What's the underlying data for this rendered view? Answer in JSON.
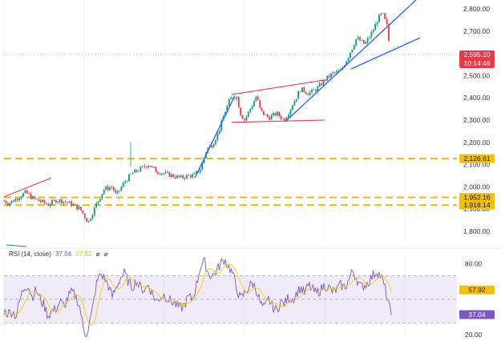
{
  "chart_data": [
    {
      "type": "candlestick",
      "name": "price",
      "y_ticks": [
        "1,800.00",
        "1,900.00",
        "2,000.00",
        "2,100.00",
        "2,200.00",
        "2,300.00",
        "2,400.00",
        "2,500.00",
        "2,600.00",
        "2,700.00",
        "2,800.00"
      ],
      "ylim": [
        1760,
        2840
      ],
      "current_price": {
        "value": 2595.2,
        "label": "2,595.20",
        "countdown": "10:14:46",
        "color": "#f23645"
      },
      "key_levels": [
        {
          "value": 2126.61,
          "label": "2,126.61"
        },
        {
          "value": 1952.16,
          "label": "1,952.16"
        },
        {
          "value": 1918.14,
          "label": "1,918.14"
        }
      ],
      "anchors": [
        [
          0,
          1950
        ],
        [
          10,
          1925
        ],
        [
          20,
          1945
        ],
        [
          32,
          1975
        ],
        [
          40,
          1950
        ],
        [
          50,
          1935
        ],
        [
          60,
          1920
        ],
        [
          70,
          1940
        ],
        [
          80,
          1935
        ],
        [
          90,
          1920
        ],
        [
          100,
          1900
        ],
        [
          110,
          1840
        ],
        [
          120,
          1920
        ],
        [
          130,
          1990
        ],
        [
          140,
          2000
        ],
        [
          145,
          1960
        ],
        [
          155,
          2020
        ],
        [
          165,
          2060
        ],
        [
          175,
          2080
        ],
        [
          185,
          2100
        ],
        [
          195,
          2070
        ],
        [
          205,
          2060
        ],
        [
          215,
          2050
        ],
        [
          225,
          2040
        ],
        [
          235,
          2050
        ],
        [
          242,
          2050
        ],
        [
          250,
          2080
        ],
        [
          258,
          2170
        ],
        [
          265,
          2190
        ],
        [
          272,
          2240
        ],
        [
          280,
          2330
        ],
        [
          287,
          2395
        ],
        [
          295,
          2410
        ],
        [
          300,
          2330
        ],
        [
          305,
          2300
        ],
        [
          315,
          2370
        ],
        [
          320,
          2410
        ],
        [
          325,
          2340
        ],
        [
          335,
          2310
        ],
        [
          345,
          2330
        ],
        [
          355,
          2300
        ],
        [
          365,
          2370
        ],
        [
          375,
          2440
        ],
        [
          385,
          2420
        ],
        [
          395,
          2440
        ],
        [
          405,
          2480
        ],
        [
          415,
          2510
        ],
        [
          425,
          2520
        ],
        [
          435,
          2590
        ],
        [
          445,
          2670
        ],
        [
          455,
          2640
        ],
        [
          465,
          2700
        ],
        [
          472,
          2760
        ],
        [
          477,
          2780
        ],
        [
          483,
          2720
        ],
        [
          487,
          2595
        ]
      ],
      "trend_lines": [
        {
          "color": "#f23645",
          "points": [
            [
              5,
              1955
            ],
            [
              64,
              2040
            ]
          ]
        },
        {
          "color": "#f23645",
          "points": [
            [
              289,
              2415
            ],
            [
              405,
              2480
            ]
          ]
        },
        {
          "color": "#f23645",
          "points": [
            [
              289,
              2290
            ],
            [
              405,
              2300
            ]
          ]
        },
        {
          "color": "#2962ff",
          "points": [
            [
              243,
              2040
            ],
            [
              293,
              2410
            ]
          ]
        },
        {
          "color": "#2962ff",
          "points": [
            [
              358,
              2300
            ],
            [
              519,
              2840
            ]
          ]
        },
        {
          "color": "#2962ff",
          "points": [
            [
              438,
              2530
            ],
            [
              524,
              2670
            ]
          ]
        }
      ]
    },
    {
      "type": "line",
      "name": "rsi",
      "legend": {
        "title": "RSI (14, close)",
        "rsi_value": "37.04",
        "ma_value": "57.92",
        "symbols": [
          "⌀",
          "⌀"
        ]
      },
      "y_ticks": [
        "20.00",
        "80.00"
      ],
      "ylim": [
        18,
        92
      ],
      "bands": {
        "upper": 70,
        "middle": 50,
        "lower": 30
      },
      "value_labels": [
        {
          "value": 57.92,
          "label": "57.92"
        },
        {
          "value": 37.04,
          "label": "37.04"
        }
      ],
      "anchors": [
        [
          5,
          40
        ],
        [
          10,
          38
        ],
        [
          15,
          40
        ],
        [
          20,
          36
        ],
        [
          26,
          52
        ],
        [
          30,
          60
        ],
        [
          35,
          62
        ],
        [
          40,
          52
        ],
        [
          45,
          58
        ],
        [
          50,
          50
        ],
        [
          55,
          45
        ],
        [
          60,
          36
        ],
        [
          65,
          40
        ],
        [
          70,
          42
        ],
        [
          75,
          48
        ],
        [
          80,
          44
        ],
        [
          85,
          52
        ],
        [
          90,
          56
        ],
        [
          95,
          52
        ],
        [
          100,
          42
        ],
        [
          104,
          25
        ],
        [
          107,
          20
        ],
        [
          110,
          25
        ],
        [
          115,
          40
        ],
        [
          120,
          62
        ],
        [
          125,
          72
        ],
        [
          130,
          68
        ],
        [
          135,
          62
        ],
        [
          140,
          52
        ],
        [
          145,
          60
        ],
        [
          150,
          68
        ],
        [
          155,
          72
        ],
        [
          160,
          65
        ],
        [
          165,
          60
        ],
        [
          170,
          66
        ],
        [
          175,
          60
        ],
        [
          180,
          58
        ],
        [
          185,
          62
        ],
        [
          190,
          55
        ],
        [
          195,
          48
        ],
        [
          200,
          52
        ],
        [
          205,
          54
        ],
        [
          210,
          50
        ],
        [
          215,
          48
        ],
        [
          220,
          45
        ],
        [
          225,
          42
        ],
        [
          230,
          45
        ],
        [
          235,
          52
        ],
        [
          240,
          50
        ],
        [
          245,
          62
        ],
        [
          250,
          78
        ],
        [
          255,
          82
        ],
        [
          260,
          72
        ],
        [
          265,
          70
        ],
        [
          270,
          74
        ],
        [
          275,
          80
        ],
        [
          280,
          84
        ],
        [
          285,
          78
        ],
        [
          290,
          72
        ],
        [
          295,
          60
        ],
        [
          300,
          50
        ],
        [
          305,
          55
        ],
        [
          310,
          60
        ],
        [
          315,
          64
        ],
        [
          320,
          58
        ],
        [
          325,
          46
        ],
        [
          330,
          42
        ],
        [
          335,
          50
        ],
        [
          340,
          44
        ],
        [
          345,
          40
        ],
        [
          350,
          48
        ],
        [
          355,
          46
        ],
        [
          360,
          52
        ],
        [
          365,
          50
        ],
        [
          370,
          55
        ],
        [
          375,
          60
        ],
        [
          380,
          55
        ],
        [
          385,
          62
        ],
        [
          390,
          58
        ],
        [
          395,
          55
        ],
        [
          400,
          58
        ],
        [
          405,
          62
        ],
        [
          410,
          60
        ],
        [
          415,
          56
        ],
        [
          420,
          58
        ],
        [
          425,
          62
        ],
        [
          430,
          60
        ],
        [
          435,
          66
        ],
        [
          440,
          74
        ],
        [
          445,
          68
        ],
        [
          450,
          60
        ],
        [
          455,
          62
        ],
        [
          460,
          65
        ],
        [
          465,
          70
        ],
        [
          470,
          74
        ],
        [
          475,
          70
        ],
        [
          480,
          60
        ],
        [
          485,
          45
        ],
        [
          488,
          37
        ]
      ]
    }
  ]
}
